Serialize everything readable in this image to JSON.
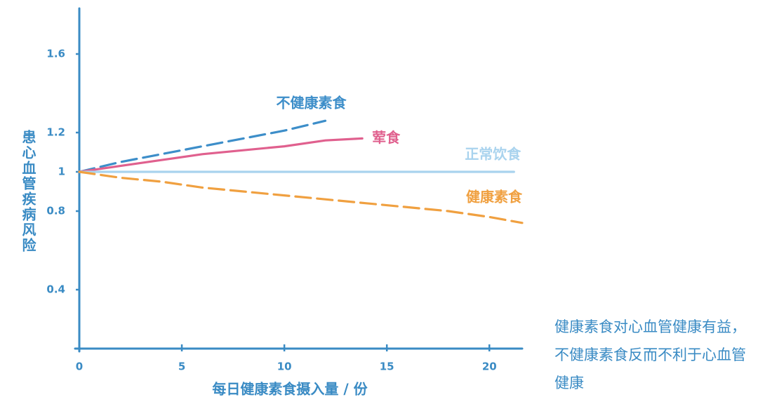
{
  "chart_data": {
    "type": "line",
    "xlabel": "每日健康素食摄入量 / 份",
    "ylabel": "患心血管疾病风险",
    "xlim": [
      0,
      21.6
    ],
    "xticks": [
      0,
      5,
      10,
      15,
      20
    ],
    "ylim": [
      0.1,
      1.8
    ],
    "yticks": [
      0.4,
      0.8,
      1,
      1.2,
      1.6
    ],
    "axis_color": "#3a8bc4",
    "series": [
      {
        "name": "不健康素食",
        "color": "#3d8ec9",
        "dash": true,
        "x": [
          0,
          2,
          4,
          6,
          8,
          10,
          12
        ],
        "values": [
          1.0,
          1.05,
          1.09,
          1.13,
          1.17,
          1.21,
          1.26
        ]
      },
      {
        "name": "荤食",
        "color": "#e0608e",
        "dash": false,
        "x": [
          0,
          2,
          4,
          6,
          8,
          10,
          12,
          13.8
        ],
        "values": [
          1.0,
          1.03,
          1.06,
          1.09,
          1.11,
          1.13,
          1.16,
          1.17
        ]
      },
      {
        "name": "正常饮食",
        "color": "#a9d3ee",
        "dash": false,
        "x": [
          0,
          21.2
        ],
        "values": [
          1.0,
          1.0
        ]
      },
      {
        "name": "健康素食",
        "color": "#f0a040",
        "dash": true,
        "x": [
          0,
          2,
          4,
          6,
          8,
          10,
          12,
          14,
          16,
          18,
          20,
          21.6
        ],
        "values": [
          1.0,
          0.97,
          0.95,
          0.92,
          0.9,
          0.88,
          0.86,
          0.84,
          0.82,
          0.8,
          0.77,
          0.74
        ]
      }
    ],
    "annotation": "健康素食对心血管健康有益，不健康素食反而不利于心血管健康"
  }
}
